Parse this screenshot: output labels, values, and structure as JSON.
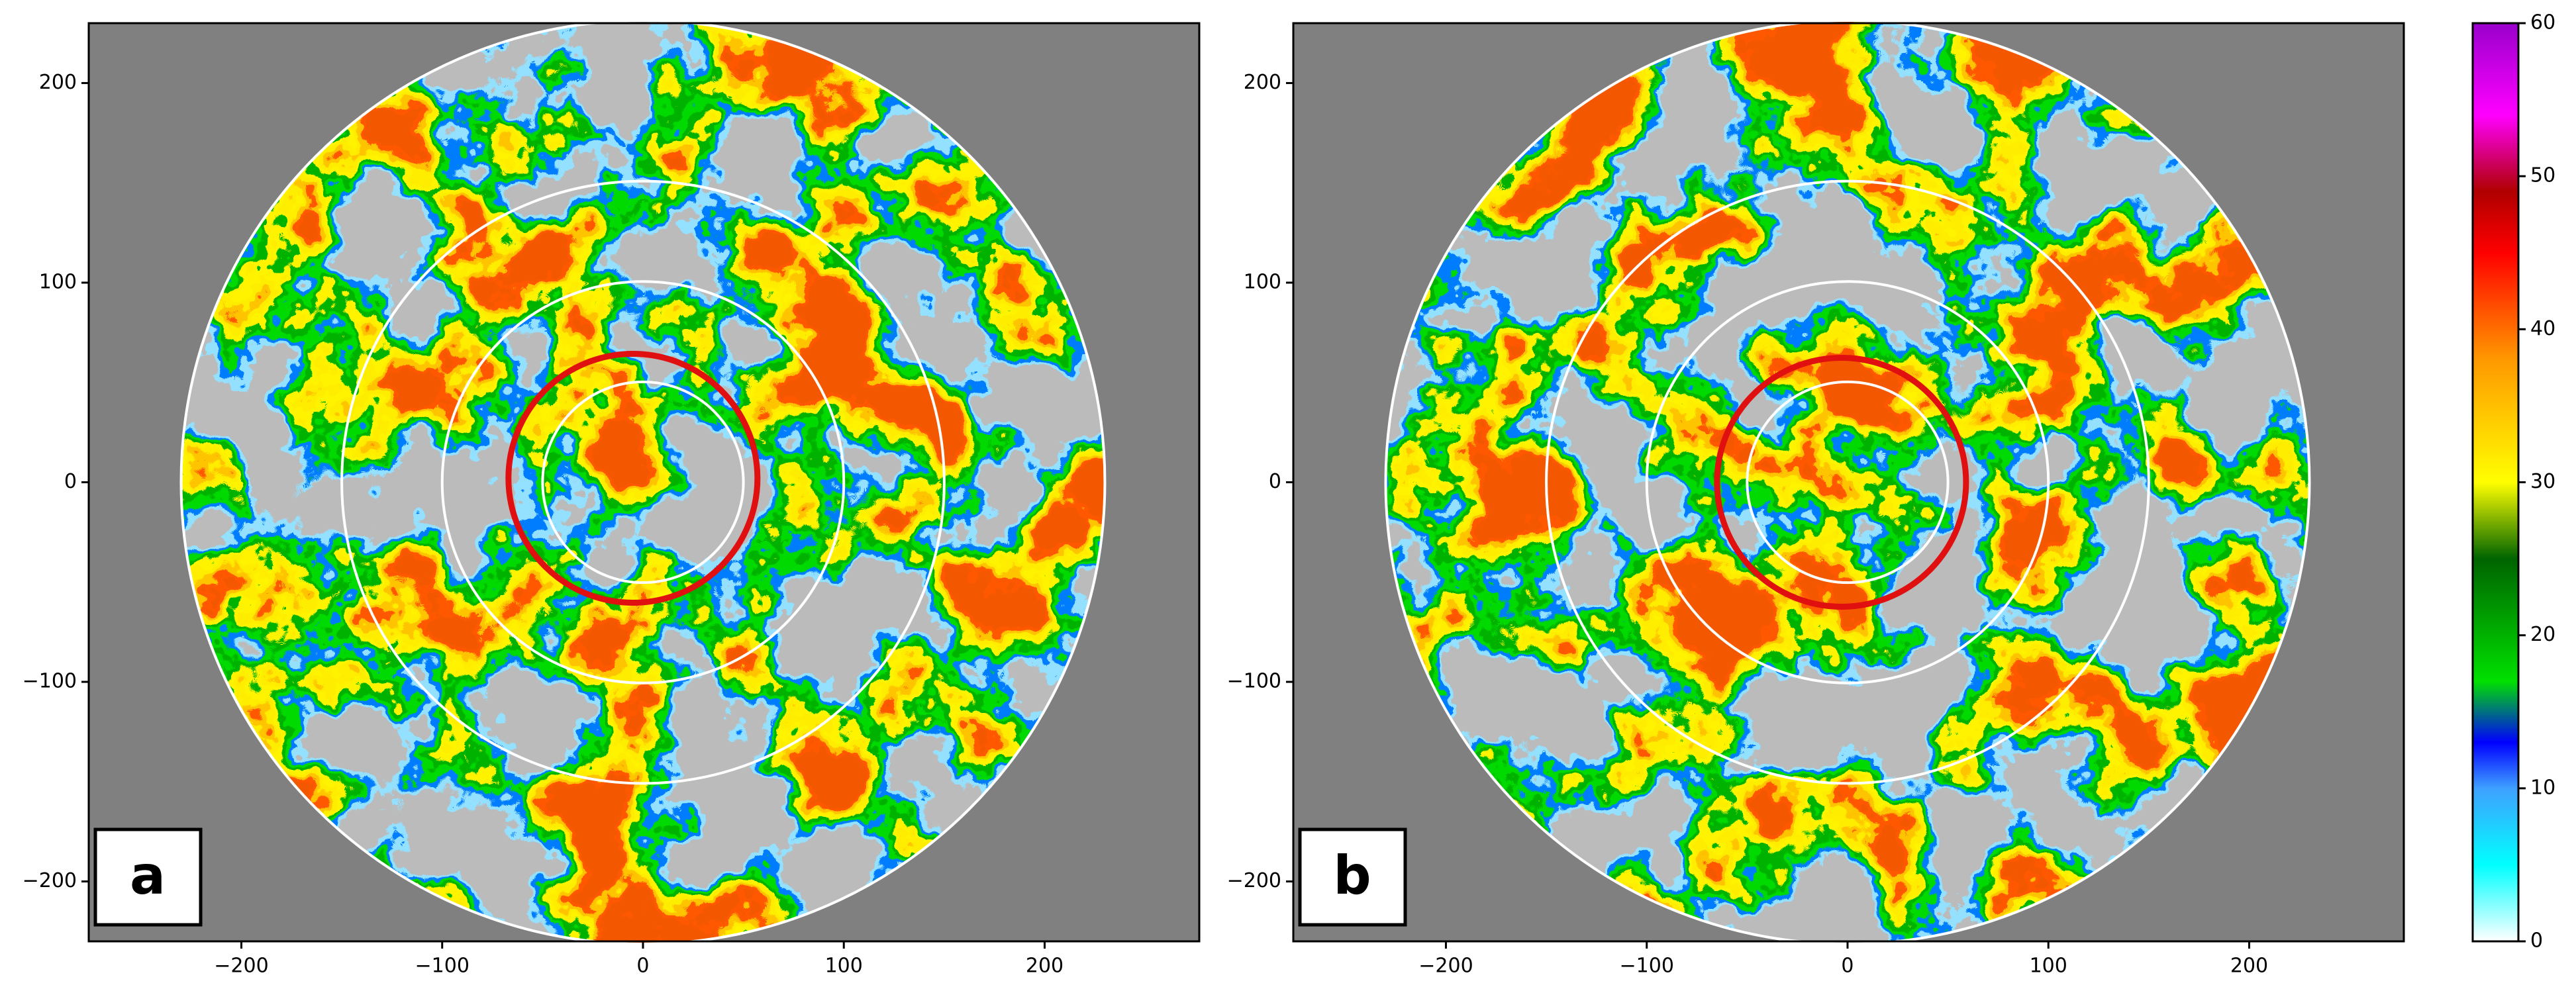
{
  "chart_data": [
    {
      "type": "radar",
      "panel_label": "a",
      "background": "#808080",
      "xlim": [
        -276,
        277
      ],
      "ylim": [
        -230,
        230
      ],
      "xticks": [
        {
          "value": -200,
          "label": "−200"
        },
        {
          "value": -100,
          "label": "−100"
        },
        0,
        100,
        200
      ],
      "yticks": [
        {
          "value": -200,
          "label": "−200"
        },
        {
          "value": -100,
          "label": "−100"
        },
        0,
        100,
        200
      ],
      "range_rings": [
        50,
        100,
        150,
        230
      ],
      "ring_color": "#ffffff",
      "highlight": {
        "x": -5,
        "y": 2,
        "radius": 62,
        "color": "#e01010"
      }
    },
    {
      "type": "radar",
      "panel_label": "b",
      "background": "#808080",
      "xlim": [
        -276,
        277
      ],
      "ylim": [
        -230,
        230
      ],
      "xticks": [
        {
          "value": -200,
          "label": "−200"
        },
        {
          "value": -100,
          "label": "−100"
        },
        0,
        100,
        200
      ],
      "yticks": [
        {
          "value": -200,
          "label": "−200"
        },
        {
          "value": -100,
          "label": "−100"
        },
        0,
        100,
        200
      ],
      "range_rings": [
        50,
        100,
        150,
        230
      ],
      "ring_color": "#ffffff",
      "highlight": {
        "x": -3,
        "y": 0,
        "radius": 62,
        "color": "#e01010"
      }
    },
    {
      "type": "colorbar",
      "lim": [
        0,
        60
      ],
      "ticks": [
        0,
        10,
        20,
        30,
        40,
        50,
        60
      ],
      "stops": [
        {
          "value": 0,
          "color": "#ffffff"
        },
        {
          "value": 5,
          "color": "#00ffff"
        },
        {
          "value": 10,
          "color": "#3fa0ff"
        },
        {
          "value": 13,
          "color": "#0000ff"
        },
        {
          "value": 17,
          "color": "#00e000"
        },
        {
          "value": 25,
          "color": "#006400"
        },
        {
          "value": 30,
          "color": "#ffff00"
        },
        {
          "value": 38,
          "color": "#ff9900"
        },
        {
          "value": 45,
          "color": "#ff0000"
        },
        {
          "value": 49,
          "color": "#b00000"
        },
        {
          "value": 54,
          "color": "#ff00ff"
        },
        {
          "value": 60,
          "color": "#9900cc"
        }
      ]
    }
  ]
}
